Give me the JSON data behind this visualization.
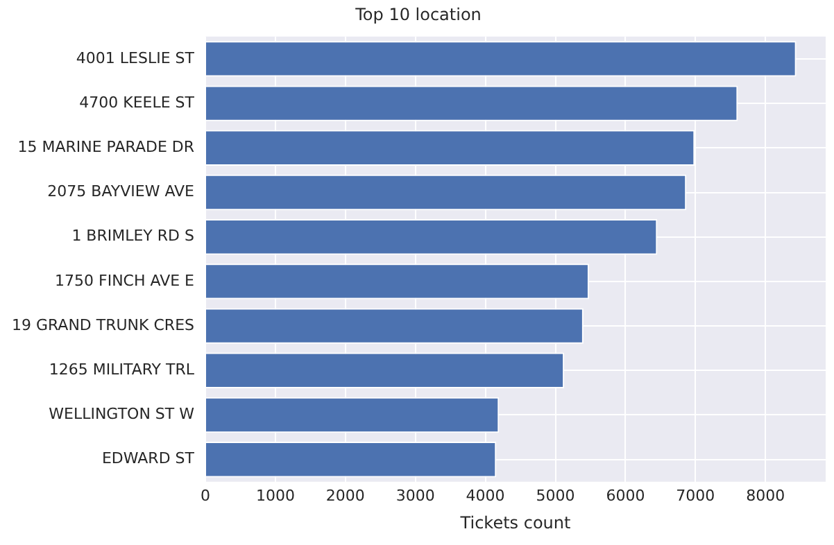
{
  "chart_data": {
    "type": "bar",
    "orientation": "horizontal",
    "title": "Top 10 location",
    "xlabel": "Tickets count",
    "categories": [
      "4001 LESLIE ST",
      "4700 KEELE ST",
      "15 MARINE PARADE DR",
      "2075 BAYVIEW AVE",
      "1 BRIMLEY RD S",
      "1750 FINCH AVE E",
      "19 GRAND TRUNK CRES",
      "1265 MILITARY TRL",
      "WELLINGTON ST W",
      "EDWARD ST"
    ],
    "values": [
      8440,
      7605,
      6990,
      6870,
      6455,
      5480,
      5400,
      5125,
      4195,
      4155
    ],
    "color": "#4c72b0",
    "xlim": [
      0,
      8860
    ],
    "xticks": [
      0,
      1000,
      2000,
      3000,
      4000,
      5000,
      6000,
      7000,
      8000
    ],
    "grid": true
  }
}
